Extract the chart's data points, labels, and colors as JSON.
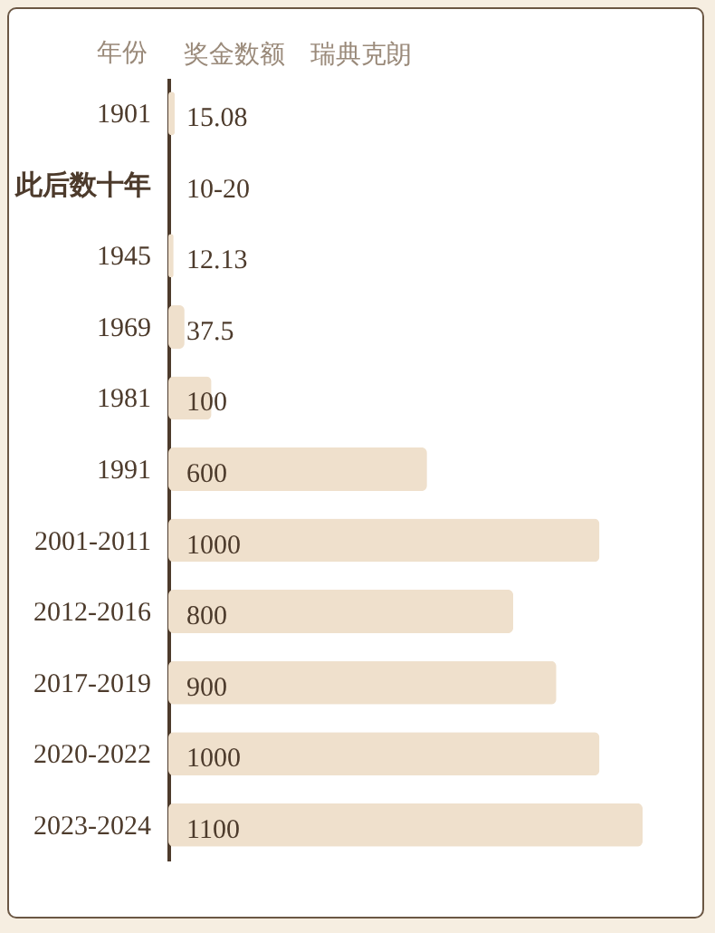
{
  "chart_data": {
    "type": "bar",
    "orientation": "horizontal",
    "ylabel": "年份",
    "xlabel": "奖金数额　瑞典克朗",
    "categories": [
      "1901",
      "此后数十年",
      "1945",
      "1969",
      "1981",
      "1991",
      "2001-2011",
      "2012-2016",
      "2017-2019",
      "2020-2022",
      "2023-2024"
    ],
    "values": [
      15.08,
      null,
      12.13,
      37.5,
      100,
      600,
      1000,
      800,
      900,
      1000,
      1100
    ],
    "value_labels": [
      "15.08",
      "10-20",
      "12.13",
      "37.5",
      "100",
      "600",
      "1000",
      "800",
      "900",
      "1000",
      "1100"
    ],
    "color": "#efe0cc"
  }
}
